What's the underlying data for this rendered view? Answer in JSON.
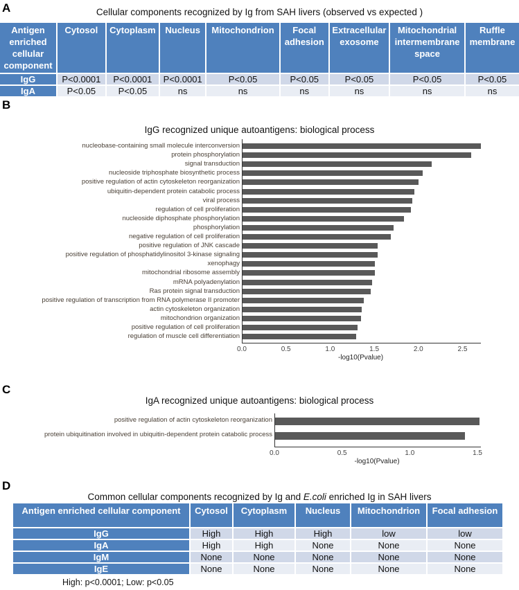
{
  "panels": [
    "A",
    "B",
    "C",
    "D"
  ],
  "tableA": {
    "title": "Cellular components recognized by Ig from SAH livers (observed vs expected )",
    "headers": [
      "Antigen enriched cellular component",
      "Cytosol",
      "Cytoplasm",
      "Nucleus",
      "Mitochondrion",
      "Focal adhesion",
      "Extracellular exosome",
      "Mitochondrial intermembrane space",
      "Ruffle membrane"
    ],
    "rows": [
      [
        "IgG",
        "P<0.0001",
        "P<0.0001",
        "P<0.0001",
        "P<0.05",
        "P<0.05",
        "P<0.05",
        "P<0.05",
        "P<0.05"
      ],
      [
        "IgA",
        "P<0.05",
        "P<0.05",
        "ns",
        "ns",
        "ns",
        "ns",
        "ns",
        "ns"
      ]
    ]
  },
  "tableD": {
    "title_pre": "Common cellular components recognized by Ig and ",
    "title_em": "E.coli",
    "title_post": " enriched Ig in SAH  livers",
    "headers": [
      "Antigen enriched cellular component",
      "Cytosol",
      "Cytoplasm",
      "Nucleus",
      "Mitochondrion",
      "Focal adhesion"
    ],
    "rows": [
      [
        "IgG",
        "High",
        "High",
        "High",
        "low",
        "low"
      ],
      [
        "IgA",
        "High",
        "High",
        "None",
        "None",
        "None"
      ],
      [
        "IgM",
        "None",
        "None",
        "None",
        "None",
        "None"
      ],
      [
        "IgE",
        "None",
        "None",
        "None",
        "None",
        "None"
      ]
    ],
    "footnote": "High: p<0.0001; Low: p<0.05"
  },
  "colors": {
    "header": "#4f81bd",
    "bar": "#595959"
  },
  "chart_data": [
    {
      "type": "bar",
      "orientation": "horizontal",
      "title": "IgG recognized unique autoantigens: biological process",
      "xlabel": "-log10(Pvalue)",
      "xlim": [
        0,
        2.7
      ],
      "ticks": [
        "0.0",
        "0.5",
        "1.0",
        "1.5",
        "2.0",
        "2.5"
      ],
      "tick_values": [
        0,
        0.5,
        1,
        1.5,
        2,
        2.5
      ],
      "categories": [
        "nucleobase-containing small molecule interconversion",
        "protein phosphorylation",
        "signal transduction",
        "nucleoside triphosphate biosynthetic process",
        "positive regulation of actin cytoskeleton reorganization",
        "ubiquitin-dependent protein catabolic process",
        "viral process",
        "regulation of cell proliferation",
        "nucleoside diphosphate phosphorylation",
        "phosphorylation",
        "negative regulation of cell proliferation",
        "positive regulation of JNK cascade",
        "positive regulation of phosphatidylinositol 3-kinase signaling",
        "xenophagy",
        "mitochondrial ribosome assembly",
        "mRNA polyadenylation",
        "Ras protein signal transduction",
        "positive regulation of transcription from RNA polymerase II promoter",
        "actin cytoskeleton organization",
        "mitochondrion organization",
        "positive regulation of cell proliferation",
        "regulation of muscle cell differentiation"
      ],
      "values": [
        2.7,
        2.59,
        2.14,
        2.04,
        1.99,
        1.95,
        1.92,
        1.91,
        1.83,
        1.71,
        1.68,
        1.53,
        1.53,
        1.5,
        1.5,
        1.47,
        1.45,
        1.37,
        1.35,
        1.34,
        1.3,
        1.29
      ]
    },
    {
      "type": "bar",
      "orientation": "horizontal",
      "title": "IgA recognized unique autoantigens: biological process",
      "xlabel": "-log10(Pvalue)",
      "xlim": [
        0,
        1.52
      ],
      "ticks": [
        "0.0",
        "0.5",
        "1.0",
        "1.5"
      ],
      "tick_values": [
        0,
        0.5,
        1,
        1.5
      ],
      "categories": [
        "positive regulation of actin cytoskeleton reorganization",
        "protein ubiquitination involved in ubiquitin-dependent protein catabolic process"
      ],
      "values": [
        1.51,
        1.4
      ]
    }
  ]
}
